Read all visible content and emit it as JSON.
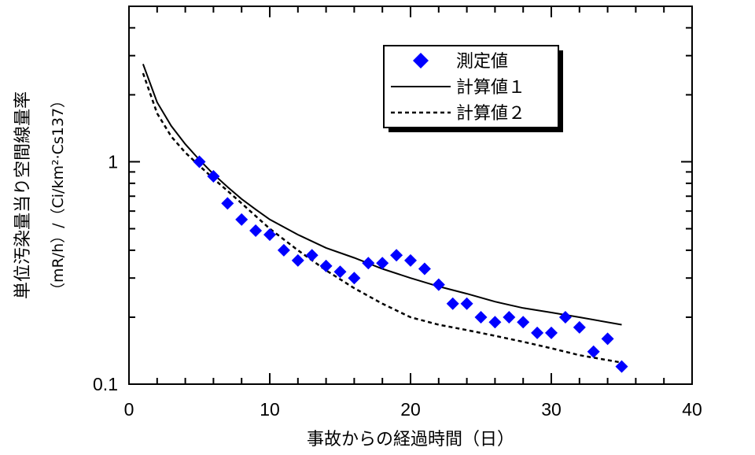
{
  "chart_data": {
    "type": "scatter",
    "xlabel": "事故からの経過時間（日）",
    "ylabel": "単位汚染量当り空間線量率",
    "ylabel_unit": "（mR/h）/（Ci/km²·Cs137）",
    "xlim": [
      0,
      40
    ],
    "ylim": [
      0.1,
      5
    ],
    "y_scale": "log",
    "x_ticks": [
      0,
      10,
      20,
      30,
      40
    ],
    "x_tick_labels": [
      "0",
      "10",
      "20",
      "30",
      "40"
    ],
    "y_ticks": [
      0.1,
      1
    ],
    "y_tick_labels": [
      "0.1",
      "1"
    ],
    "grid": false,
    "legend_position": "top-right",
    "series": [
      {
        "name": "測定値",
        "kind": "marker",
        "marker": "diamond",
        "color": "#0000ff",
        "x": [
          5,
          6,
          7,
          8,
          9,
          10,
          11,
          12,
          13,
          14,
          15,
          16,
          17,
          18,
          19,
          20,
          21,
          22,
          23,
          24,
          25,
          26,
          27,
          28,
          29,
          30,
          31,
          32,
          33,
          34,
          35
        ],
        "y": [
          1.0,
          0.86,
          0.65,
          0.55,
          0.49,
          0.47,
          0.4,
          0.36,
          0.38,
          0.34,
          0.32,
          0.3,
          0.35,
          0.35,
          0.38,
          0.36,
          0.33,
          0.28,
          0.23,
          0.23,
          0.2,
          0.19,
          0.2,
          0.19,
          0.17,
          0.17,
          0.2,
          0.18,
          0.14,
          0.16,
          0.12
        ]
      },
      {
        "name": "計算値１",
        "kind": "line",
        "dash": "solid",
        "color": "#000000",
        "x": [
          1,
          2,
          3,
          4,
          5,
          6,
          7,
          8,
          9,
          10,
          12,
          14,
          16,
          18,
          20,
          22,
          24,
          26,
          28,
          30,
          32,
          35
        ],
        "y": [
          2.75,
          1.85,
          1.45,
          1.2,
          1.02,
          0.88,
          0.77,
          0.68,
          0.61,
          0.55,
          0.47,
          0.41,
          0.37,
          0.33,
          0.3,
          0.275,
          0.255,
          0.235,
          0.22,
          0.21,
          0.2,
          0.185
        ]
      },
      {
        "name": "計算値２",
        "kind": "line",
        "dash": "dashed",
        "color": "#000000",
        "x": [
          1,
          2,
          3,
          4,
          5,
          6,
          7,
          8,
          9,
          10,
          12,
          14,
          16,
          18,
          20,
          22,
          24,
          26,
          28,
          30,
          32,
          35
        ],
        "y": [
          2.5,
          1.65,
          1.3,
          1.1,
          0.96,
          0.84,
          0.74,
          0.65,
          0.57,
          0.5,
          0.4,
          0.325,
          0.27,
          0.23,
          0.2,
          0.185,
          0.175,
          0.165,
          0.155,
          0.145,
          0.135,
          0.125
        ]
      }
    ],
    "legend_labels": [
      "測定値",
      "計算値１",
      "計算値２"
    ]
  }
}
